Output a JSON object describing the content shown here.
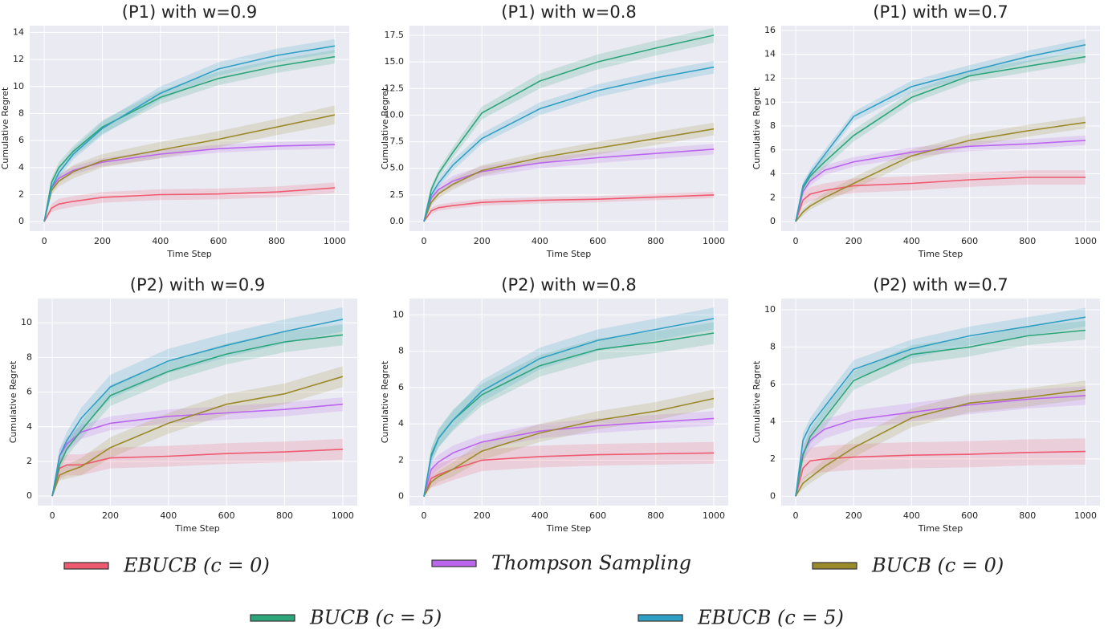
{
  "chart_data": [
    {
      "type": "line",
      "title": "(P1) with w=0.9",
      "xlabel": "Time Step",
      "ylabel": "Cumulative Regret",
      "grid": true,
      "x": [
        0,
        25,
        50,
        100,
        200,
        400,
        600,
        800,
        1000
      ],
      "xlim": [
        -50,
        1050
      ],
      "xticks": [
        0,
        200,
        400,
        600,
        800,
        1000
      ],
      "ylim": [
        -0.7,
        14.5
      ],
      "yticks": [
        0,
        2,
        4,
        6,
        8,
        10,
        12,
        14
      ],
      "series": [
        {
          "name": "EBUCB (c = 0)",
          "color": "#ee5a70",
          "values": [
            0,
            1.0,
            1.3,
            1.5,
            1.8,
            2.0,
            2.05,
            2.2,
            2.5
          ],
          "errors": [
            0,
            0.3,
            0.4,
            0.4,
            0.4,
            0.4,
            0.4,
            0.4,
            0.4
          ]
        },
        {
          "name": "Thompson Sampling",
          "color": "#bb66ee",
          "values": [
            0,
            2.5,
            3.2,
            3.8,
            4.4,
            5.0,
            5.4,
            5.6,
            5.7
          ],
          "errors": [
            0,
            0.3,
            0.3,
            0.3,
            0.3,
            0.3,
            0.3,
            0.3,
            0.3
          ]
        },
        {
          "name": "BUCB (c = 0)",
          "color": "#9a8a2a",
          "values": [
            0,
            2.3,
            3.0,
            3.7,
            4.5,
            5.3,
            6.1,
            7.0,
            7.9
          ],
          "errors": [
            0,
            0.3,
            0.4,
            0.5,
            0.5,
            0.6,
            0.6,
            0.6,
            0.7
          ]
        },
        {
          "name": "BUCB (c = 5)",
          "color": "#2ca57a",
          "values": [
            0,
            2.9,
            4.0,
            5.2,
            7.0,
            9.2,
            10.6,
            11.5,
            12.2
          ],
          "errors": [
            0,
            0.3,
            0.4,
            0.4,
            0.5,
            0.5,
            0.5,
            0.5,
            0.5
          ]
        },
        {
          "name": "EBUCB (c = 5)",
          "color": "#2f9fc4",
          "values": [
            0,
            2.5,
            3.6,
            5.0,
            6.9,
            9.5,
            11.3,
            12.3,
            13.0
          ],
          "errors": [
            0,
            0.3,
            0.4,
            0.4,
            0.5,
            0.5,
            0.5,
            0.5,
            0.5
          ]
        }
      ]
    },
    {
      "type": "line",
      "title": "(P1) with w=0.8",
      "xlabel": "Time Step",
      "ylabel": "Cumulative Regret",
      "grid": true,
      "x": [
        0,
        25,
        50,
        100,
        200,
        400,
        600,
        800,
        1000
      ],
      "xlim": [
        -50,
        1050
      ],
      "xticks": [
        0,
        200,
        400,
        600,
        800,
        1000
      ],
      "ylim": [
        -0.9,
        18.4
      ],
      "yticks": [
        {
          "value": 0,
          "label": "0.0"
        },
        2.5,
        {
          "value": 5,
          "label": "5.0"
        },
        7.5,
        {
          "value": 10,
          "label": "10.0"
        },
        12.5,
        {
          "value": 15,
          "label": "15.0"
        },
        17.5
      ],
      "series": [
        {
          "name": "EBUCB (c = 0)",
          "color": "#ee5a70",
          "values": [
            0,
            1.0,
            1.3,
            1.5,
            1.8,
            2.0,
            2.1,
            2.3,
            2.5
          ],
          "errors": [
            0,
            0.3,
            0.3,
            0.3,
            0.3,
            0.3,
            0.3,
            0.3,
            0.3
          ]
        },
        {
          "name": "Thompson Sampling",
          "color": "#bb66ee",
          "values": [
            0,
            2.2,
            3.0,
            3.8,
            4.7,
            5.5,
            6.0,
            6.4,
            6.8
          ],
          "errors": [
            0,
            0.3,
            0.4,
            0.5,
            0.5,
            0.5,
            0.5,
            0.5,
            0.5
          ]
        },
        {
          "name": "BUCB (c = 0)",
          "color": "#9a8a2a",
          "values": [
            0,
            1.8,
            2.6,
            3.5,
            4.8,
            6.0,
            6.9,
            7.8,
            8.7
          ],
          "errors": [
            0,
            0.3,
            0.4,
            0.5,
            0.5,
            0.5,
            0.6,
            0.6,
            0.6
          ]
        },
        {
          "name": "BUCB (c = 5)",
          "color": "#2ca57a",
          "values": [
            0,
            3.0,
            4.5,
            6.5,
            10.2,
            13.2,
            15.0,
            16.3,
            17.5
          ],
          "errors": [
            0,
            0.3,
            0.4,
            0.5,
            0.6,
            0.7,
            0.7,
            0.7,
            0.7
          ]
        },
        {
          "name": "EBUCB (c = 5)",
          "color": "#2f9fc4",
          "values": [
            0,
            2.5,
            3.6,
            5.3,
            7.8,
            10.6,
            12.3,
            13.5,
            14.5
          ],
          "errors": [
            0,
            0.3,
            0.4,
            0.5,
            0.5,
            0.6,
            0.6,
            0.6,
            0.6
          ]
        }
      ]
    },
    {
      "type": "line",
      "title": "(P1) with w=0.7",
      "xlabel": "Time Step",
      "ylabel": "Cumulative Regret",
      "grid": true,
      "x": [
        0,
        25,
        50,
        100,
        200,
        400,
        600,
        800,
        1000
      ],
      "xlim": [
        -50,
        1050
      ],
      "xticks": [
        0,
        200,
        400,
        600,
        800,
        1000
      ],
      "ylim": [
        -0.8,
        16.4
      ],
      "yticks": [
        0,
        2,
        4,
        6,
        8,
        10,
        12,
        14,
        16
      ],
      "series": [
        {
          "name": "EBUCB (c = 0)",
          "color": "#ee5a70",
          "values": [
            0,
            1.8,
            2.3,
            2.6,
            3.0,
            3.2,
            3.5,
            3.7,
            3.7
          ],
          "errors": [
            0,
            0.5,
            0.6,
            0.6,
            0.6,
            0.6,
            0.6,
            0.6,
            0.6
          ]
        },
        {
          "name": "Thompson Sampling",
          "color": "#bb66ee",
          "values": [
            0,
            2.5,
            3.4,
            4.3,
            5.0,
            5.8,
            6.3,
            6.5,
            6.8
          ],
          "errors": [
            0,
            0.3,
            0.4,
            0.4,
            0.4,
            0.4,
            0.4,
            0.4,
            0.4
          ]
        },
        {
          "name": "BUCB (c = 0)",
          "color": "#9a8a2a",
          "values": [
            0,
            0.8,
            1.3,
            2.0,
            3.2,
            5.5,
            6.8,
            7.6,
            8.3
          ],
          "errors": [
            0,
            0.3,
            0.3,
            0.4,
            0.5,
            0.5,
            0.5,
            0.5,
            0.5
          ]
        },
        {
          "name": "BUCB (c = 5)",
          "color": "#2ca57a",
          "values": [
            0,
            2.8,
            3.8,
            5.0,
            7.2,
            10.4,
            12.2,
            13.0,
            13.8
          ],
          "errors": [
            0,
            0.3,
            0.4,
            0.5,
            0.5,
            0.5,
            0.5,
            0.5,
            0.5
          ]
        },
        {
          "name": "EBUCB (c = 5)",
          "color": "#2f9fc4",
          "values": [
            0,
            3.0,
            4.0,
            5.6,
            8.8,
            11.3,
            12.6,
            13.8,
            14.8
          ],
          "errors": [
            0,
            0.3,
            0.4,
            0.4,
            0.4,
            0.5,
            0.5,
            0.5,
            0.5
          ]
        }
      ]
    },
    {
      "type": "line",
      "title": "(P2) with w=0.9",
      "xlabel": "Time Step",
      "ylabel": "Cumulative Regret",
      "grid": true,
      "x": [
        0,
        25,
        50,
        100,
        200,
        400,
        600,
        800,
        1000
      ],
      "xlim": [
        -50,
        1050
      ],
      "xticks": [
        0,
        200,
        400,
        600,
        800,
        1000
      ],
      "ylim": [
        -0.55,
        11.4
      ],
      "yticks": [
        0,
        2,
        4,
        6,
        8,
        10
      ],
      "series": [
        {
          "name": "EBUCB (c = 0)",
          "color": "#ee5a70",
          "values": [
            0,
            1.6,
            1.8,
            1.8,
            2.2,
            2.3,
            2.45,
            2.55,
            2.7
          ],
          "errors": [
            0,
            0.6,
            0.6,
            0.6,
            0.6,
            0.6,
            0.6,
            0.6,
            0.6
          ]
        },
        {
          "name": "Thompson Sampling",
          "color": "#bb66ee",
          "values": [
            0,
            2.3,
            3.0,
            3.7,
            4.2,
            4.6,
            4.8,
            5.0,
            5.3
          ],
          "errors": [
            0,
            0.4,
            0.4,
            0.4,
            0.4,
            0.4,
            0.4,
            0.4,
            0.4
          ]
        },
        {
          "name": "BUCB (c = 0)",
          "color": "#9a8a2a",
          "values": [
            0,
            1.2,
            1.4,
            1.7,
            2.8,
            4.2,
            5.3,
            5.9,
            6.9
          ],
          "errors": [
            0,
            0.3,
            0.4,
            0.5,
            0.6,
            0.6,
            0.6,
            0.6,
            0.6
          ]
        },
        {
          "name": "BUCB (c = 5)",
          "color": "#2ca57a",
          "values": [
            0,
            1.8,
            2.7,
            3.8,
            5.8,
            7.2,
            8.2,
            8.9,
            9.3
          ],
          "errors": [
            0,
            0.3,
            0.4,
            0.5,
            0.6,
            0.6,
            0.6,
            0.6,
            0.6
          ]
        },
        {
          "name": "EBUCB (c = 5)",
          "color": "#2f9fc4",
          "values": [
            0,
            2.3,
            3.2,
            4.5,
            6.3,
            7.8,
            8.7,
            9.5,
            10.2
          ],
          "errors": [
            0,
            0.4,
            0.5,
            0.6,
            0.7,
            0.7,
            0.7,
            0.7,
            0.7
          ]
        }
      ]
    },
    {
      "type": "line",
      "title": "(P2) with w=0.8",
      "xlabel": "Time Step",
      "ylabel": "Cumulative Regret",
      "grid": true,
      "x": [
        0,
        25,
        50,
        100,
        200,
        400,
        600,
        800,
        1000
      ],
      "xlim": [
        -50,
        1050
      ],
      "xticks": [
        0,
        200,
        400,
        600,
        800,
        1000
      ],
      "ylim": [
        -0.5,
        10.9
      ],
      "yticks": [
        0,
        2,
        4,
        6,
        8,
        10
      ],
      "series": [
        {
          "name": "EBUCB (c = 0)",
          "color": "#ee5a70",
          "values": [
            0,
            1.0,
            1.2,
            1.5,
            2.0,
            2.2,
            2.3,
            2.35,
            2.4
          ],
          "errors": [
            0,
            0.5,
            0.6,
            0.6,
            0.6,
            0.6,
            0.6,
            0.6,
            0.6
          ]
        },
        {
          "name": "Thompson Sampling",
          "color": "#bb66ee",
          "values": [
            0,
            1.5,
            1.9,
            2.4,
            3.0,
            3.6,
            3.9,
            4.1,
            4.3
          ],
          "errors": [
            0,
            0.4,
            0.4,
            0.4,
            0.4,
            0.4,
            0.4,
            0.4,
            0.4
          ]
        },
        {
          "name": "BUCB (c = 0)",
          "color": "#9a8a2a",
          "values": [
            0,
            0.8,
            1.1,
            1.5,
            2.5,
            3.5,
            4.2,
            4.7,
            5.4
          ],
          "errors": [
            0,
            0.3,
            0.3,
            0.4,
            0.5,
            0.5,
            0.5,
            0.5,
            0.5
          ]
        },
        {
          "name": "BUCB (c = 5)",
          "color": "#2ca57a",
          "values": [
            0,
            2.3,
            3.2,
            4.2,
            5.6,
            7.2,
            8.1,
            8.5,
            9.0
          ],
          "errors": [
            0,
            0.4,
            0.5,
            0.6,
            0.6,
            0.6,
            0.6,
            0.6,
            0.6
          ]
        },
        {
          "name": "EBUCB (c = 5)",
          "color": "#2f9fc4",
          "values": [
            0,
            2.2,
            3.2,
            4.2,
            5.8,
            7.6,
            8.6,
            9.2,
            9.8
          ],
          "errors": [
            0,
            0.4,
            0.5,
            0.5,
            0.6,
            0.6,
            0.6,
            0.6,
            0.6
          ]
        }
      ]
    },
    {
      "type": "line",
      "title": "(P2) with w=0.7",
      "xlabel": "Time Step",
      "ylabel": "Cumulative Regret",
      "grid": true,
      "x": [
        0,
        25,
        50,
        100,
        200,
        400,
        600,
        800,
        1000
      ],
      "xlim": [
        -50,
        1050
      ],
      "xticks": [
        0,
        200,
        400,
        600,
        800,
        1000
      ],
      "ylim": [
        -0.5,
        10.6
      ],
      "yticks": [
        0,
        2,
        4,
        6,
        8,
        10
      ],
      "series": [
        {
          "name": "EBUCB (c = 0)",
          "color": "#ee5a70",
          "values": [
            0,
            1.5,
            1.9,
            2.0,
            2.1,
            2.2,
            2.25,
            2.35,
            2.4
          ],
          "errors": [
            0,
            0.6,
            0.7,
            0.7,
            0.7,
            0.7,
            0.7,
            0.7,
            0.7
          ]
        },
        {
          "name": "Thompson Sampling",
          "color": "#bb66ee",
          "values": [
            0,
            2.3,
            3.0,
            3.6,
            4.1,
            4.5,
            4.9,
            5.2,
            5.4
          ],
          "errors": [
            0,
            0.4,
            0.5,
            0.5,
            0.5,
            0.5,
            0.5,
            0.5,
            0.5
          ]
        },
        {
          "name": "BUCB (c = 0)",
          "color": "#9a8a2a",
          "values": [
            0,
            0.7,
            1.0,
            1.6,
            2.6,
            4.2,
            5.0,
            5.3,
            5.7
          ],
          "errors": [
            0,
            0.3,
            0.3,
            0.4,
            0.5,
            0.5,
            0.5,
            0.5,
            0.5
          ]
        },
        {
          "name": "BUCB (c = 5)",
          "color": "#2ca57a",
          "values": [
            0,
            2.2,
            3.2,
            4.2,
            6.2,
            7.6,
            8.0,
            8.6,
            8.9
          ],
          "errors": [
            0,
            0.4,
            0.4,
            0.5,
            0.5,
            0.5,
            0.5,
            0.5,
            0.5
          ]
        },
        {
          "name": "EBUCB (c = 5)",
          "color": "#2f9fc4",
          "values": [
            0,
            3.0,
            3.8,
            4.8,
            6.8,
            7.9,
            8.6,
            9.1,
            9.6
          ],
          "errors": [
            0,
            0.4,
            0.4,
            0.5,
            0.5,
            0.5,
            0.5,
            0.5,
            0.5
          ]
        }
      ]
    }
  ]
}
